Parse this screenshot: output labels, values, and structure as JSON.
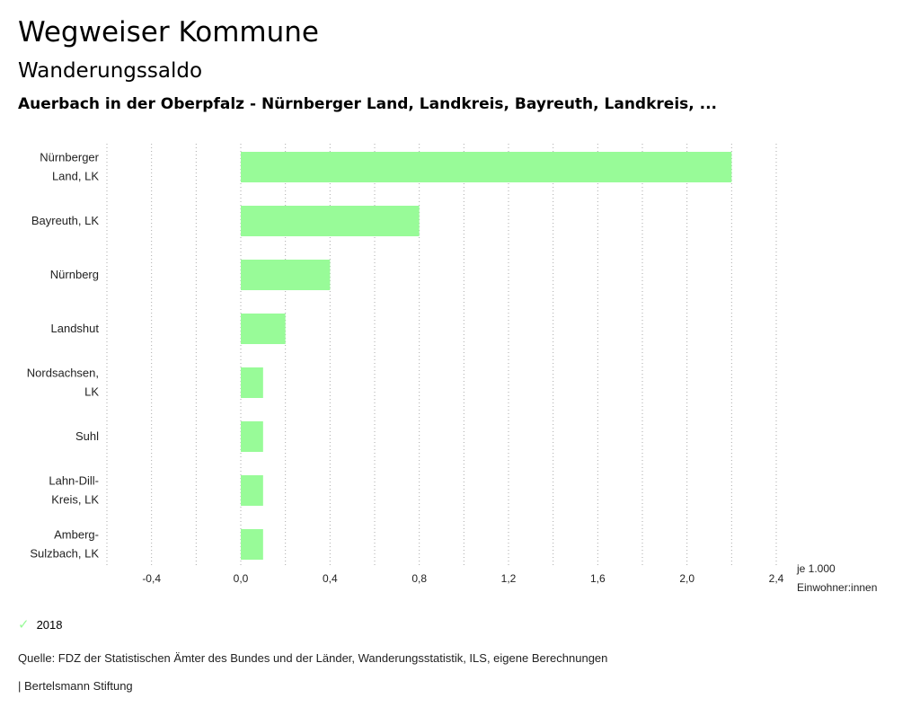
{
  "header": {
    "title": "Wegweiser Kommune",
    "subtitle": "Wanderungssaldo",
    "selection": "Auerbach in der Oberpfalz - Nürnberger Land, Landkreis, Bayreuth, Landkreis, ..."
  },
  "chart_data": {
    "type": "bar",
    "orientation": "horizontal",
    "categories": [
      [
        "Nürnberger",
        "Land, LK"
      ],
      [
        "Bayreuth, LK"
      ],
      [
        "Nürnberg"
      ],
      [
        "Landshut"
      ],
      [
        "Nordsachsen,",
        "LK"
      ],
      [
        "Suhl"
      ],
      [
        "Lahn-Dill-",
        "Kreis, LK"
      ],
      [
        "Amberg-",
        "Sulzbach, LK"
      ]
    ],
    "series": [
      {
        "name": "2018",
        "color": "#98fb98",
        "values": [
          2.2,
          0.8,
          0.4,
          0.2,
          0.1,
          0.1,
          0.1,
          0.1
        ]
      }
    ],
    "xlim": [
      -0.6,
      2.4
    ],
    "xticks": [
      -0.4,
      0.0,
      0.4,
      0.8,
      1.2,
      1.6,
      2.0,
      2.4
    ],
    "xtick_labels": [
      "-0,4",
      "0,0",
      "0,4",
      "0,8",
      "1,2",
      "1,6",
      "2,0",
      "2,4"
    ],
    "unit_label": [
      "je 1.000",
      "Einwohner:innen"
    ],
    "grid": "vertical-dotted",
    "legend": "bottom-left"
  },
  "legend": {
    "label": "2018",
    "icon": "check-icon"
  },
  "footer": {
    "source": "Quelle: FDZ der Statistischen Ämter des Bundes und der Länder, Wanderungsstatistik, ILS, eigene Berechnungen",
    "brand": "| Bertelsmann Stiftung"
  }
}
